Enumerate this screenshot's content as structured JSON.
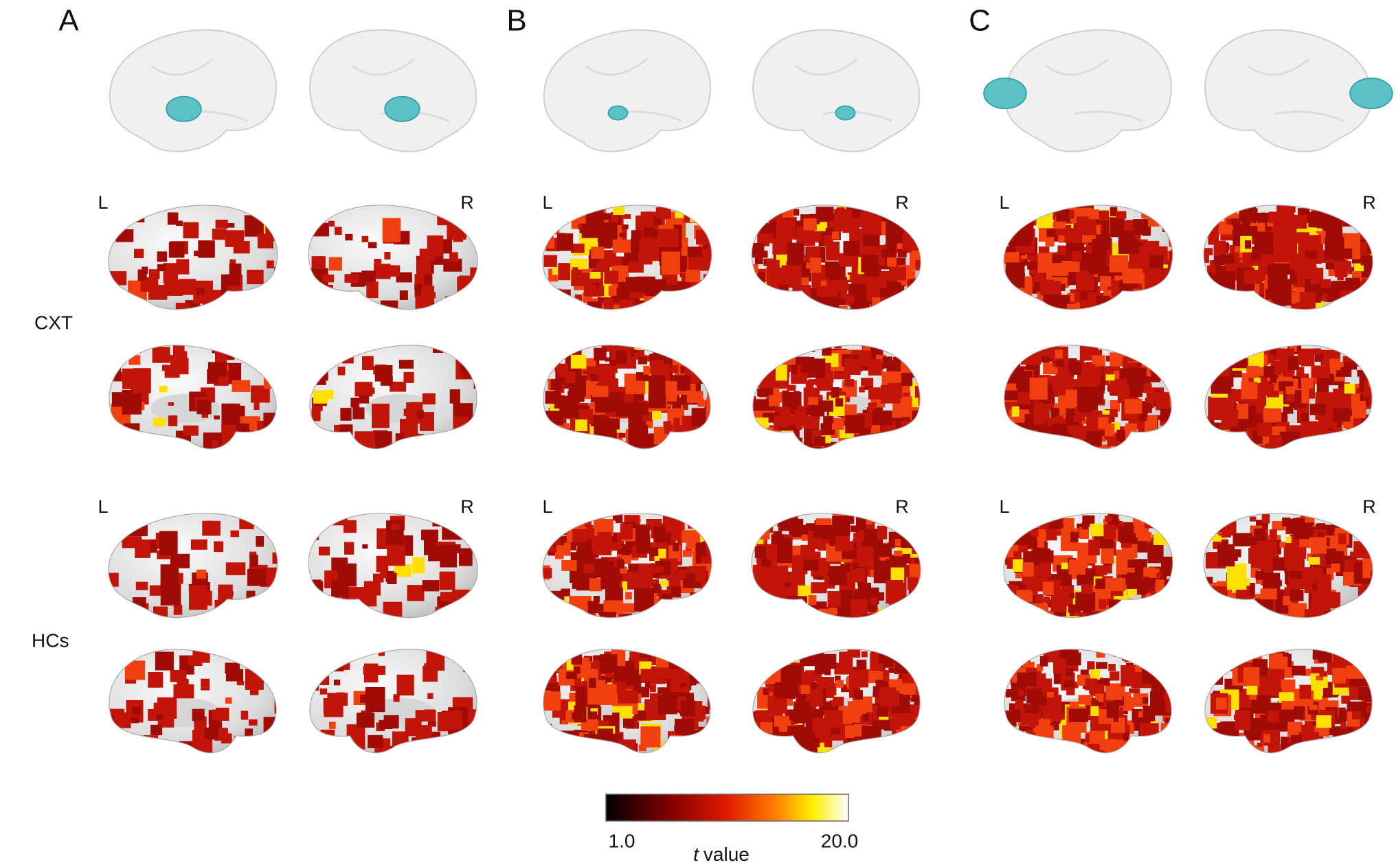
{
  "panels": [
    {
      "label": "A",
      "rows": [
        {
          "left": "L",
          "right": "R"
        },
        {
          "left": "L",
          "right": "R"
        }
      ]
    },
    {
      "label": "B",
      "rows": [
        {
          "left": "L",
          "right": "R"
        },
        {
          "left": "L",
          "right": "R"
        }
      ]
    },
    {
      "label": "C",
      "rows": [
        {
          "left": "L",
          "right": "R"
        },
        {
          "left": "L",
          "right": "R"
        }
      ]
    }
  ],
  "row_labels": [
    "CXT",
    "HCs"
  ],
  "colorbar": {
    "min": "1.0",
    "max": "20.0",
    "title_var": "t",
    "title_text": "value"
  }
}
